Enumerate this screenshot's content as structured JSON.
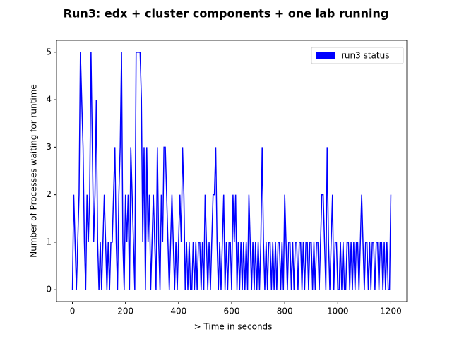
{
  "chart_data": {
    "type": "line",
    "title": "Run3: edx + cluster components + one lab running",
    "xlabel": "> Time  in seconds",
    "ylabel": "Number of Processes waiting for runtime",
    "xlim": [
      -60,
      1260
    ],
    "ylim": [
      -0.25,
      5.25
    ],
    "xticks": [
      0,
      200,
      400,
      600,
      800,
      1000,
      1200
    ],
    "yticks": [
      0,
      1,
      2,
      3,
      4,
      5
    ],
    "grid": false,
    "legend": "upper right",
    "x": [
      0,
      5,
      10,
      15,
      20,
      25,
      30,
      35,
      40,
      45,
      50,
      55,
      60,
      65,
      70,
      75,
      80,
      85,
      90,
      95,
      100,
      105,
      110,
      115,
      120,
      125,
      130,
      135,
      140,
      145,
      150,
      155,
      160,
      165,
      170,
      175,
      180,
      185,
      190,
      195,
      200,
      205,
      210,
      215,
      220,
      225,
      230,
      235,
      240,
      245,
      250,
      255,
      260,
      265,
      270,
      275,
      280,
      285,
      290,
      295,
      300,
      305,
      310,
      315,
      320,
      325,
      330,
      335,
      340,
      345,
      350,
      355,
      360,
      365,
      370,
      375,
      380,
      385,
      390,
      395,
      400,
      405,
      410,
      415,
      420,
      425,
      430,
      435,
      440,
      445,
      450,
      455,
      460,
      465,
      470,
      475,
      480,
      485,
      490,
      495,
      500,
      505,
      510,
      515,
      520,
      525,
      530,
      535,
      540,
      545,
      550,
      555,
      560,
      565,
      570,
      575,
      580,
      585,
      590,
      595,
      600,
      605,
      610,
      615,
      620,
      625,
      630,
      635,
      640,
      645,
      650,
      655,
      660,
      665,
      670,
      675,
      680,
      685,
      690,
      695,
      700,
      705,
      710,
      715,
      720,
      725,
      730,
      735,
      740,
      745,
      750,
      755,
      760,
      765,
      770,
      775,
      780,
      785,
      790,
      795,
      800,
      805,
      810,
      815,
      820,
      825,
      830,
      835,
      840,
      845,
      850,
      855,
      860,
      865,
      870,
      875,
      880,
      885,
      890,
      895,
      900,
      905,
      910,
      915,
      920,
      925,
      930,
      935,
      940,
      945,
      950,
      955,
      960,
      965,
      970,
      975,
      980,
      985,
      990,
      995,
      1000,
      1005,
      1010,
      1015,
      1020,
      1025,
      1030,
      1035,
      1040,
      1045,
      1050,
      1055,
      1060,
      1065,
      1070,
      1075,
      1080,
      1085,
      1090,
      1095,
      1100,
      1105,
      1110,
      1115,
      1120,
      1125,
      1130,
      1135,
      1140,
      1145,
      1150,
      1155,
      1160,
      1165,
      1170,
      1175,
      1180,
      1185,
      1190,
      1195,
      1200
    ],
    "series": [
      {
        "name": "run3 status",
        "color": "#0000ff",
        "values": [
          0,
          2,
          1,
          0,
          1,
          2,
          5,
          4,
          3,
          1,
          0,
          2,
          1,
          2,
          5,
          3,
          1,
          2,
          4,
          1,
          0,
          1,
          0,
          1,
          2,
          1,
          0,
          1,
          0,
          1,
          1,
          2,
          3,
          1,
          0,
          2,
          3,
          5,
          1,
          0,
          2,
          1,
          2,
          0,
          3,
          2,
          1,
          0,
          5,
          5,
          5,
          5,
          4,
          1,
          3,
          0,
          3,
          1,
          2,
          0,
          1,
          2,
          1,
          0,
          3,
          1,
          0,
          2,
          1,
          3,
          3,
          2,
          1,
          0,
          1,
          2,
          1,
          0,
          1,
          0,
          1,
          2,
          1,
          3,
          2,
          0,
          1,
          0,
          1,
          0,
          0,
          1,
          0,
          1,
          0,
          1,
          1,
          0,
          1,
          0,
          2,
          1,
          0,
          1,
          0,
          1,
          2,
          2,
          3,
          1,
          0,
          1,
          0,
          1,
          2,
          0,
          1,
          0,
          1,
          1,
          0,
          2,
          1,
          2,
          0,
          1,
          0,
          1,
          0,
          1,
          0,
          1,
          0,
          2,
          1,
          0,
          1,
          0,
          1,
          0,
          1,
          0,
          1,
          3,
          1,
          0,
          1,
          0,
          1,
          1,
          0,
          1,
          0,
          1,
          0,
          1,
          1,
          0,
          1,
          0,
          2,
          1,
          0,
          1,
          1,
          0,
          1,
          0,
          1,
          1,
          0,
          1,
          1,
          0,
          1,
          0,
          1,
          1,
          0,
          1,
          1,
          0,
          1,
          0,
          1,
          1,
          0,
          1,
          2,
          2,
          1,
          0,
          3,
          1,
          0,
          1,
          2,
          0,
          1,
          1,
          0,
          0,
          1,
          0,
          1,
          0,
          0,
          1,
          1,
          0,
          1,
          0,
          1,
          0,
          1,
          1,
          0,
          1,
          2,
          1,
          0,
          1,
          1,
          0,
          1,
          0,
          1,
          1,
          0,
          1,
          1,
          0,
          1,
          1,
          0,
          1,
          0,
          1,
          0,
          0,
          2
        ]
      }
    ]
  }
}
